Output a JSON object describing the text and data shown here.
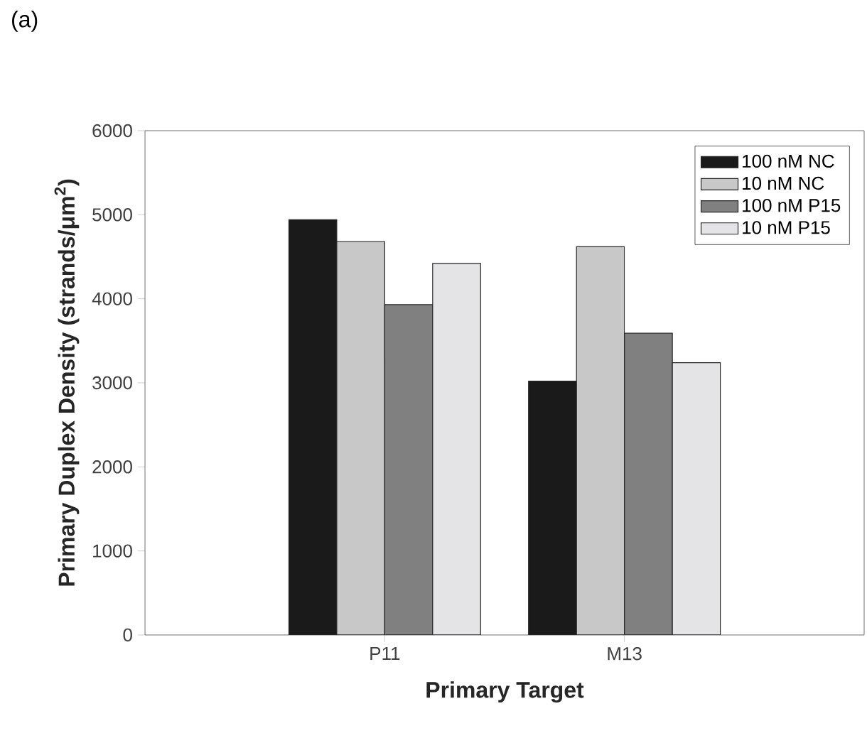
{
  "chart_data": {
    "type": "bar",
    "annotations": [
      "(a)"
    ],
    "xlabel": "Primary Target",
    "ylabel": "Primary Duplex Density (strands/μm$^{2}$)",
    "categories": [
      "P11",
      "M13"
    ],
    "series": [
      {
        "name": "100 nM NC",
        "color": "#1a1a1a",
        "values": [
          4940,
          3020
        ]
      },
      {
        "name": "10 nM NC",
        "color": "#c8c8c8",
        "values": [
          4680,
          4620
        ]
      },
      {
        "name": "100 nM P15",
        "color": "#808080",
        "values": [
          3930,
          3590
        ]
      },
      {
        "name": "10 nM P15",
        "color": "#e4e3e6",
        "values": [
          4420,
          3240
        ]
      }
    ],
    "ylim": [
      0,
      6000
    ],
    "yticks": [
      0,
      1000,
      2000,
      3000,
      4000,
      5000,
      6000
    ],
    "legend": "top right",
    "grid": false
  }
}
